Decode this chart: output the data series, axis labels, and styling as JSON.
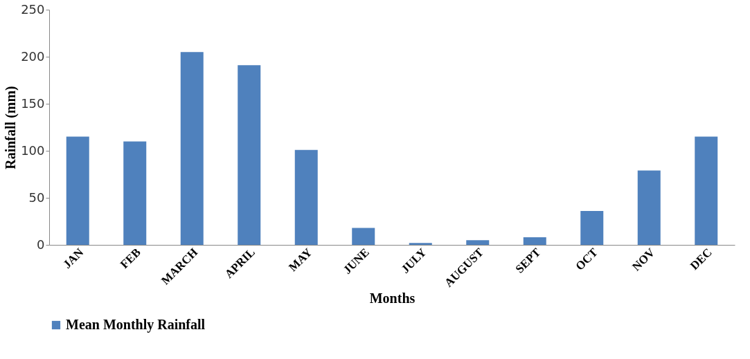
{
  "chart_data": {
    "type": "bar",
    "xlabel": "Months",
    "ylabel": "Rainfall (mm)",
    "categories": [
      "JAN",
      "FEB",
      "MARCH",
      "APRIL",
      "MAY",
      "JUNE",
      "JULY",
      "AUGUST",
      "SEPT",
      "OCT",
      "NOV",
      "DEC"
    ],
    "series": [
      {
        "name": "Mean Monthly Rainfall",
        "color": "#4f81bd",
        "values": [
          115,
          110,
          205,
          191,
          101,
          18,
          2,
          5,
          8,
          36,
          79,
          115
        ]
      }
    ],
    "ylim": [
      0,
      250
    ],
    "yticks": [
      0,
      50,
      100,
      150,
      200,
      250
    ],
    "grid": false,
    "legend": "bottom"
  }
}
